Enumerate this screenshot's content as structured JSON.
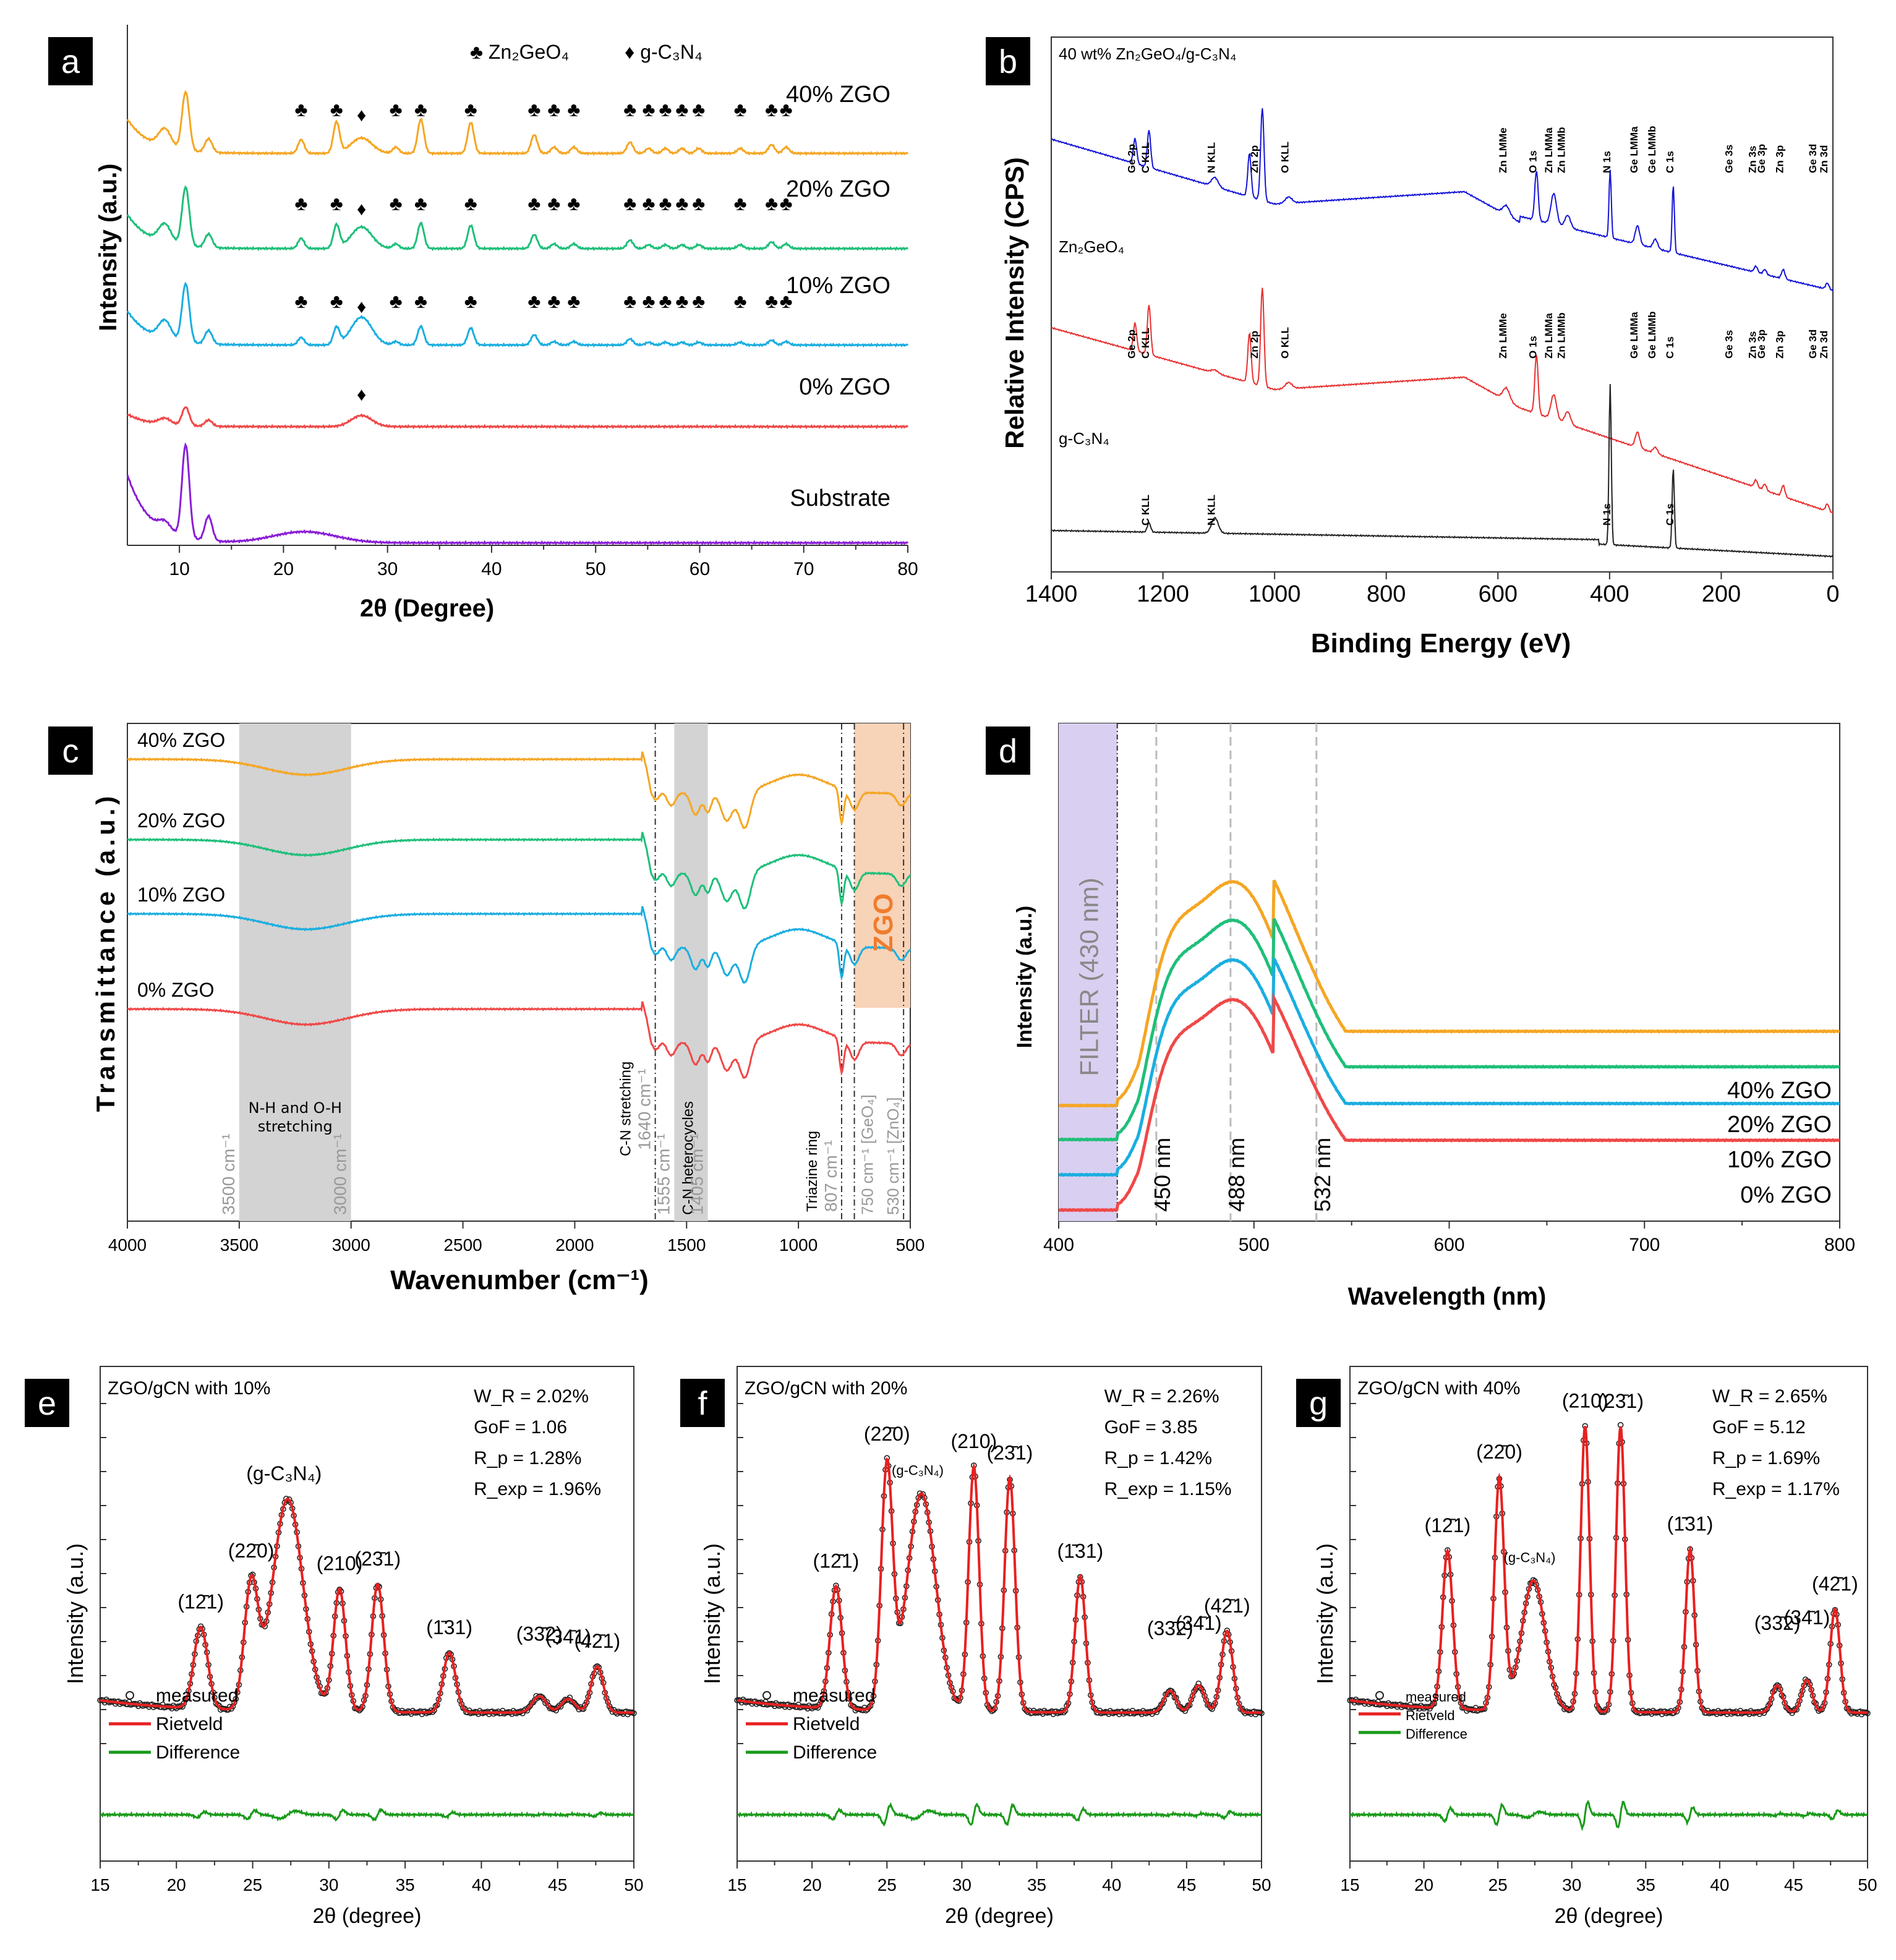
{
  "chart_data": [
    {
      "panel": "a",
      "type": "line",
      "legend": [
        {
          "symbol": "♣",
          "text": "Zn₂GeO₄"
        },
        {
          "symbol": "♦",
          "text": "g-C₃N₄"
        }
      ],
      "xlabel": "2θ (Degree)",
      "ylabel": "Intensity (a.u.)",
      "xlim": [
        5,
        80
      ],
      "xticks": [
        10,
        20,
        30,
        40,
        50,
        60,
        70,
        80
      ],
      "series": [
        {
          "name": "40% ZGO",
          "color": "#f5a623"
        },
        {
          "name": "20% ZGO",
          "color": "#1fbf7a"
        },
        {
          "name": "10% ZGO",
          "color": "#1aaee0"
        },
        {
          "name": "0% ZGO",
          "color": "#f04848"
        },
        {
          "name": "Substrate",
          "color": "#8a1ed6"
        }
      ],
      "zgo_peaks": [
        21.7,
        25.1,
        30.8,
        33.2,
        38.0,
        44.1,
        46.0,
        47.9,
        53.3,
        55.1,
        56.7,
        58.3,
        59.9,
        63.9,
        66.9,
        68.3
      ],
      "gcn_peak": 27.5
    },
    {
      "panel": "b",
      "type": "line",
      "title": "40 wt%  Zn₂GeO₄/g-C₃N₄",
      "xlabel": "Binding Energy (eV)",
      "ylabel": "Relative Intensity (CPS)",
      "xlim": [
        1400,
        0
      ],
      "xticks": [
        1400,
        1200,
        1000,
        800,
        600,
        400,
        200,
        0
      ],
      "series": [
        {
          "name": "40 wt%  Zn₂GeO₄/g-C₃N₄",
          "color": "#1414d8"
        },
        {
          "name": "Zn₂GeO₄",
          "color": "#e83030"
        },
        {
          "name": "g-C₃N₄",
          "color": "#222222"
        }
      ],
      "peak_labels_top": [
        {
          "x": 1250,
          "t": "Ge 2p"
        },
        {
          "x": 1225,
          "t": "C KLL"
        },
        {
          "x": 1107,
          "t": "N KLL"
        },
        {
          "x": 1030,
          "t": "Zn 2p"
        },
        {
          "x": 975,
          "t": "O KLL"
        },
        {
          "x": 585,
          "t": "Zn LMMe"
        },
        {
          "x": 531,
          "t": "O 1s"
        },
        {
          "x": 503,
          "t": "Zn LMMa"
        },
        {
          "x": 480,
          "t": "Zn LMMb"
        },
        {
          "x": 399,
          "t": "N 1s"
        },
        {
          "x": 350,
          "t": "Ge LMMa"
        },
        {
          "x": 318,
          "t": "Ge LMMb"
        },
        {
          "x": 286,
          "t": "C 1s"
        },
        {
          "x": 180,
          "t": "Ge 3s"
        },
        {
          "x": 138,
          "t": "Zn 3s"
        },
        {
          "x": 122,
          "t": "Ge 3p"
        },
        {
          "x": 89,
          "t": "Zn 3p"
        },
        {
          "x": 30,
          "t": "Ge 3d"
        },
        {
          "x": 10,
          "t": "Zn 3d"
        }
      ],
      "peak_labels_mid": [
        {
          "x": 1250,
          "t": "Ge 2p"
        },
        {
          "x": 1225,
          "t": "C KLL"
        },
        {
          "x": 1030,
          "t": "Zn 2p"
        },
        {
          "x": 975,
          "t": "O KLL"
        },
        {
          "x": 585,
          "t": "Zn LMMe"
        },
        {
          "x": 531,
          "t": "O 1s"
        },
        {
          "x": 503,
          "t": "Zn LMMa"
        },
        {
          "x": 480,
          "t": "Zn LMMb"
        },
        {
          "x": 350,
          "t": "Ge LMMa"
        },
        {
          "x": 318,
          "t": "Ge LMMb"
        },
        {
          "x": 286,
          "t": "C 1s"
        },
        {
          "x": 180,
          "t": "Ge 3s"
        },
        {
          "x": 138,
          "t": "Zn 3s"
        },
        {
          "x": 122,
          "t": "Ge 3p"
        },
        {
          "x": 89,
          "t": "Zn 3p"
        },
        {
          "x": 30,
          "t": "Ge 3d"
        },
        {
          "x": 10,
          "t": "Zn 3d"
        }
      ],
      "peak_labels_bottom": [
        {
          "x": 1225,
          "t": "C KLL"
        },
        {
          "x": 1107,
          "t": "N KLL"
        },
        {
          "x": 399,
          "t": "N 1s"
        },
        {
          "x": 286,
          "t": "C 1s"
        }
      ]
    },
    {
      "panel": "c",
      "type": "line",
      "xlabel": "Wavenumber (cm⁻¹)",
      "ylabel": "Transmittance (a.u.)",
      "xlim": [
        4000,
        500
      ],
      "xticks": [
        4000,
        3500,
        3000,
        2500,
        2000,
        1500,
        1000,
        500
      ],
      "series": [
        {
          "name": "40% ZGO",
          "color": "#f5a623"
        },
        {
          "name": "20% ZGO",
          "color": "#1fbf7a"
        },
        {
          "name": "10% ZGO",
          "color": "#1aaee0"
        },
        {
          "name": "0% ZGO",
          "color": "#f04848"
        }
      ],
      "band_labels": [
        "3500 cm⁻¹",
        "3000 cm⁻¹",
        "N-H and O-H",
        "stretching",
        "C-N stretching",
        "1640 cm⁻¹",
        "1555 cm⁻¹",
        "C-N heterocycles",
        "1405 cm⁻¹",
        "Triazine ring",
        "807 cm⁻¹",
        "750 cm⁻¹ [GeO₄]",
        "530 cm⁻¹ [ZnO₄]",
        "ZGO"
      ]
    },
    {
      "panel": "d",
      "type": "line",
      "xlabel": "Wavelength (nm)",
      "ylabel": "Intensity (a.u.)",
      "xlim": [
        400,
        800
      ],
      "xticks": [
        400,
        500,
        600,
        700,
        800
      ],
      "filter_label": "FILTER (430 nm)",
      "filter_edge": 430,
      "markers": [
        {
          "x": 450,
          "t": "450 nm"
        },
        {
          "x": 488,
          "t": "488 nm"
        },
        {
          "x": 532,
          "t": "532 nm"
        }
      ],
      "series": [
        {
          "name": "40% ZGO",
          "color": "#f5a623"
        },
        {
          "name": "20% ZGO",
          "color": "#1fbf7a"
        },
        {
          "name": "10% ZGO",
          "color": "#1aaee0"
        },
        {
          "name": "0% ZGO",
          "color": "#f04848"
        }
      ]
    },
    {
      "panel": "e",
      "type": "line",
      "title": "ZGO/gCN with 10%",
      "stats": [
        "W_R = 2.02%",
        "GoF = 1.06",
        "R_p = 1.28%",
        "R_exp = 1.96%"
      ],
      "xlabel": "2θ (degree)",
      "ylabel": "Intensity (a.u.)",
      "xlim": [
        15,
        50
      ],
      "xticks": [
        15,
        20,
        25,
        30,
        35,
        40,
        45,
        50
      ],
      "legend": [
        "measured",
        "Rietveld",
        "Difference"
      ],
      "peaks": [
        {
          "x": 21.6,
          "h": 0.3,
          "w": 0.45,
          "label": "(12̄1)"
        },
        {
          "x": 24.9,
          "h": 0.45,
          "w": 0.45,
          "label": "(22̄0)"
        },
        {
          "x": 27.3,
          "h": 0.78,
          "w": 1.0,
          "label": "(g-C₃N₄)"
        },
        {
          "x": 30.7,
          "h": 0.45,
          "w": 0.4,
          "label": "(210)"
        },
        {
          "x": 33.2,
          "h": 0.47,
          "w": 0.4,
          "label": "(23̄1)"
        },
        {
          "x": 37.9,
          "h": 0.22,
          "w": 0.4,
          "label": "(1̄31)"
        },
        {
          "x": 43.8,
          "h": 0.06,
          "w": 0.45,
          "label": "(33̄2)"
        },
        {
          "x": 45.7,
          "h": 0.05,
          "w": 0.45,
          "label": "(34̄1)"
        },
        {
          "x": 47.6,
          "h": 0.17,
          "w": 0.4,
          "label": "(42̄1)"
        }
      ]
    },
    {
      "panel": "f",
      "type": "line",
      "title": "ZGO/gCN with 20%",
      "stats": [
        "W_R = 2.26%",
        "GoF = 3.85",
        "R_p = 1.42%",
        "R_exp = 1.15%"
      ],
      "xlabel": "2θ (degree)",
      "ylabel": "Intensity (a.u.)",
      "xlim": [
        15,
        50
      ],
      "xticks": [
        15,
        20,
        25,
        30,
        35,
        40,
        45,
        50
      ],
      "legend": [
        "measured",
        "Rietveld",
        "Difference"
      ],
      "peaks": [
        {
          "x": 21.6,
          "h": 0.45,
          "w": 0.4,
          "label": "(12̄1)"
        },
        {
          "x": 25.0,
          "h": 0.88,
          "w": 0.38,
          "label": "(22̄0)"
        },
        {
          "x": 27.3,
          "h": 0.8,
          "w": 0.95,
          "label": "(g-C₃N₄)"
        },
        {
          "x": 30.8,
          "h": 0.9,
          "w": 0.35,
          "label": "(210)"
        },
        {
          "x": 33.2,
          "h": 0.86,
          "w": 0.35,
          "label": "(23̄1)"
        },
        {
          "x": 37.9,
          "h": 0.5,
          "w": 0.35,
          "label": "(1̄31)"
        },
        {
          "x": 43.9,
          "h": 0.08,
          "w": 0.4,
          "label": "(33̄2)"
        },
        {
          "x": 45.8,
          "h": 0.1,
          "w": 0.4,
          "label": "(34̄1)"
        },
        {
          "x": 47.7,
          "h": 0.3,
          "w": 0.38,
          "label": "(42̄1)"
        }
      ]
    },
    {
      "panel": "g",
      "type": "line",
      "title": "ZGO/gCN with 40%",
      "stats": [
        "W_R = 2.65%",
        "GoF = 5.12",
        "R_p = 1.69%",
        "R_exp = 1.17%"
      ],
      "xlabel": "2θ (degree)",
      "ylabel": "Intensity (a.u.)",
      "xlim": [
        15,
        50
      ],
      "xticks": [
        15,
        20,
        25,
        30,
        35,
        40,
        45,
        50
      ],
      "legend": [
        "measured",
        "Rietveld",
        "Difference"
      ],
      "peaks": [
        {
          "x": 21.6,
          "h": 0.58,
          "w": 0.35,
          "label": "(12̄1)"
        },
        {
          "x": 25.1,
          "h": 0.85,
          "w": 0.33,
          "label": "(22̄0)"
        },
        {
          "x": 27.4,
          "h": 0.48,
          "w": 0.8,
          "label": "(g-C₃N₄)"
        },
        {
          "x": 30.9,
          "h": 1.05,
          "w": 0.3,
          "label": "(210)"
        },
        {
          "x": 33.3,
          "h": 1.05,
          "w": 0.3,
          "label": "(23̄1)"
        },
        {
          "x": 38.0,
          "h": 0.6,
          "w": 0.3,
          "label": "(1̄31)"
        },
        {
          "x": 43.9,
          "h": 0.1,
          "w": 0.35,
          "label": "(33̄2)"
        },
        {
          "x": 45.9,
          "h": 0.12,
          "w": 0.35,
          "label": "(34̄1)"
        },
        {
          "x": 47.8,
          "h": 0.38,
          "w": 0.33,
          "label": "(42̄1)"
        }
      ]
    }
  ]
}
